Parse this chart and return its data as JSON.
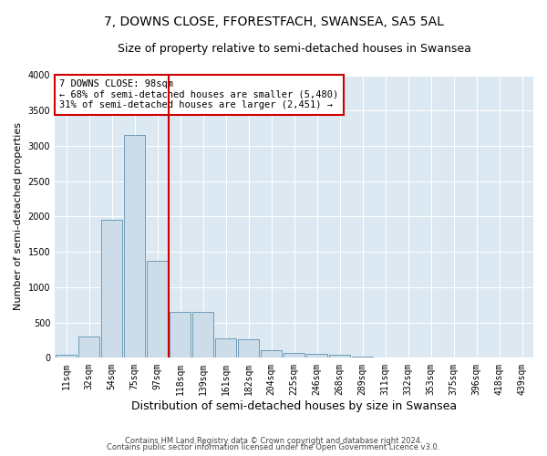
{
  "title": "7, DOWNS CLOSE, FFORESTFACH, SWANSEA, SA5 5AL",
  "subtitle": "Size of property relative to semi-detached houses in Swansea",
  "xlabel": "Distribution of semi-detached houses by size in Swansea",
  "ylabel": "Number of semi-detached properties",
  "categories": [
    "11sqm",
    "32sqm",
    "54sqm",
    "75sqm",
    "97sqm",
    "118sqm",
    "139sqm",
    "161sqm",
    "182sqm",
    "204sqm",
    "225sqm",
    "246sqm",
    "268sqm",
    "289sqm",
    "311sqm",
    "332sqm",
    "353sqm",
    "375sqm",
    "396sqm",
    "418sqm",
    "439sqm"
  ],
  "values": [
    50,
    300,
    1960,
    3160,
    1380,
    650,
    650,
    280,
    270,
    110,
    75,
    60,
    45,
    20,
    10,
    5,
    3,
    2,
    2,
    1,
    1
  ],
  "bar_color": "#ccdce8",
  "bar_edge_color": "#6090b0",
  "property_line_x": 4.5,
  "annotation_title": "7 DOWNS CLOSE: 98sqm",
  "annotation_line1": "← 68% of semi-detached houses are smaller (5,480)",
  "annotation_line2": "31% of semi-detached houses are larger (2,451) →",
  "annotation_box_color": "#ffffff",
  "annotation_box_edge": "#cc0000",
  "vline_color": "#cc0000",
  "footer1": "Contains HM Land Registry data © Crown copyright and database right 2024.",
  "footer2": "Contains public sector information licensed under the Open Government Licence v3.0.",
  "ylim": [
    0,
    4000
  ],
  "yticks": [
    0,
    500,
    1000,
    1500,
    2000,
    2500,
    3000,
    3500,
    4000
  ],
  "plot_bg_color": "#dce8f2",
  "grid_color": "#ffffff",
  "title_fontsize": 10,
  "subtitle_fontsize": 9,
  "tick_fontsize": 7,
  "ylabel_fontsize": 8,
  "xlabel_fontsize": 9
}
